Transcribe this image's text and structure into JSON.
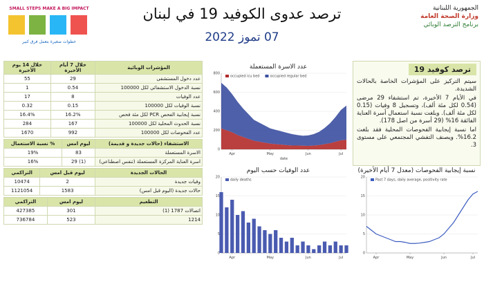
{
  "header": {
    "title": "ترصد عدوى الكوفيد 19 في لبنان",
    "date": "07 تموز 2022",
    "ministry": [
      "الجمهورية اللبنانية",
      "وزارة الصحة العامة",
      "برنامج الترصد الوبائي"
    ],
    "logo_text": [
      "SMALL STEPS MAKE A BIG IMPACT",
      "خطوات صغيرة بتعمل فرق كبير"
    ]
  },
  "panel": {
    "title": "ترصد كوفيد 19",
    "paragraphs": [
      "سيتم التركيز على المؤشرات الخاصة بالحالات الشديدة.",
      "في الأيام 7 الأخيرة، تم استشفاء 29 مرضى (0.54 لكل مئة ألف)، وتسجيل 8 وفيات (0.15 لكل مئة ألف). وبلغت نسبة استعمال أسرة العناية الفائقة 16% (29 أسرة من اصل 178).",
      "اما نسبة إيجابية الفحوصات المحلية فقد بلغت 16.2%. ويصنف التفشي المجتمعي على مستوى 3."
    ]
  },
  "tables": [
    {
      "headers": [
        "المؤشرات الوبائية",
        "خلال 7 أيام الأخيرة",
        "خلال 14 يوم الأخيرة"
      ],
      "rows": [
        [
          "عدد دخول المستشفى",
          "29",
          "55"
        ],
        [
          "نسبة الدخول الاستشفائي لكل 100000",
          "0.54",
          "1"
        ],
        [
          "عدد الوفيات",
          "8",
          "17"
        ],
        [
          "نسبة الوفيات لكل 100000",
          "0.15",
          "0.32"
        ],
        [
          "نسبة إيجابية الفحص PCR لكل مئة فحص",
          "16.2%",
          "16.4%"
        ],
        [
          "نسبة الحدوث المحلية لكل 100000",
          "167",
          "284"
        ],
        [
          "عدد الفحوصات لكل 100000",
          "992",
          "1670"
        ]
      ]
    },
    {
      "headers": [
        "الاستشفاء (حالات جديدة و قديمة)",
        "ليوم امس",
        "% نسبة الاستعمال"
      ],
      "rows": [
        [
          "الاسرة المستعملة",
          "83",
          "19%"
        ],
        [
          "اسرة العناية المركزة المستعملة (تنفس اصطناعي)",
          "(1) 29",
          "16%"
        ]
      ]
    },
    {
      "headers": [
        "الحالات الجديدة",
        "ليوم قبل امس",
        "التراكمي"
      ],
      "rows": [
        [
          "وفيات جديدة",
          "2",
          "10474"
        ],
        [
          "حالات جديدة (اليوم قبل امس)",
          "1583",
          "1121054"
        ]
      ]
    },
    {
      "headers": [
        "التطعيم",
        "ليوم امس",
        "التراكمي"
      ],
      "rows": [
        [
          "اتصالات 1787 (1)",
          "301",
          "427385"
        ],
        [
          "1214",
          "523",
          "736784"
        ]
      ]
    }
  ],
  "charts": [
    {
      "type": "area",
      "title": "عدد الاسرة المستعملة",
      "xlabel": "date",
      "xlim": [
        0,
        23
      ],
      "xticks": [
        {
          "value": 2,
          "label": "Apr"
        },
        {
          "value": 9,
          "label": "May"
        },
        {
          "value": 16,
          "label": "Jun"
        },
        {
          "value": 22,
          "label": "Jul"
        }
      ],
      "ylim": [
        0,
        800
      ],
      "yticks": [
        0,
        200,
        400,
        600,
        800
      ],
      "series": [
        {
          "name": "occupied icu bed",
          "color": "#b22a2a",
          "values": [
            220,
            200,
            180,
            150,
            130,
            110,
            90,
            80,
            70,
            60,
            55,
            50,
            45,
            40,
            40,
            38,
            36,
            40,
            45,
            55,
            65,
            80,
            95,
            100
          ]
        },
        {
          "name": "occupied regular bed",
          "color": "#3b4fa0",
          "values": [
            480,
            450,
            400,
            350,
            300,
            260,
            220,
            200,
            180,
            160,
            150,
            140,
            130,
            120,
            110,
            105,
            110,
            120,
            140,
            170,
            210,
            260,
            320,
            360
          ]
        }
      ]
    },
    {
      "type": "bar",
      "title": "عدد الوفيات حسب اليوم",
      "xlim": [
        0,
        23
      ],
      "xticks": [
        {
          "value": 2,
          "label": "Apr"
        },
        {
          "value": 9,
          "label": "May"
        },
        {
          "value": 16,
          "label": "Jun"
        },
        {
          "value": 22,
          "label": "Jul"
        }
      ],
      "ylim": [
        0,
        20
      ],
      "yticks": [
        0,
        5,
        10,
        15,
        20
      ],
      "series": [
        {
          "name": "daily deaths",
          "color": "#4a5bb0",
          "values": [
            16,
            12,
            14,
            10,
            11,
            8,
            9,
            7,
            6,
            5,
            6,
            4,
            3,
            4,
            2,
            3,
            2,
            1,
            2,
            3,
            2,
            3,
            2,
            2
          ]
        }
      ]
    },
    {
      "type": "line",
      "title": "نسبة إيجابية الفحوصات (معدل 7 أيام الأخيرة)",
      "xlim": [
        0,
        23
      ],
      "xticks": [
        {
          "value": 2,
          "label": "Apr"
        },
        {
          "value": 9,
          "label": "May"
        },
        {
          "value": 16,
          "label": "Jun"
        },
        {
          "value": 22,
          "label": "Jul"
        }
      ],
      "ylim": [
        0,
        20
      ],
      "yticks": [
        0,
        5,
        10,
        15,
        20
      ],
      "series": [
        {
          "name": "Past 7 days, daily average, positivity rate",
          "color": "#3b5bc0",
          "values": [
            7,
            6,
            5,
            4.5,
            4,
            3.5,
            3,
            3,
            2.8,
            2.5,
            2.5,
            2.6,
            2.8,
            3,
            3.5,
            4,
            5,
            6.5,
            8,
            10,
            12,
            14,
            15.5,
            16.2
          ]
        }
      ]
    }
  ]
}
